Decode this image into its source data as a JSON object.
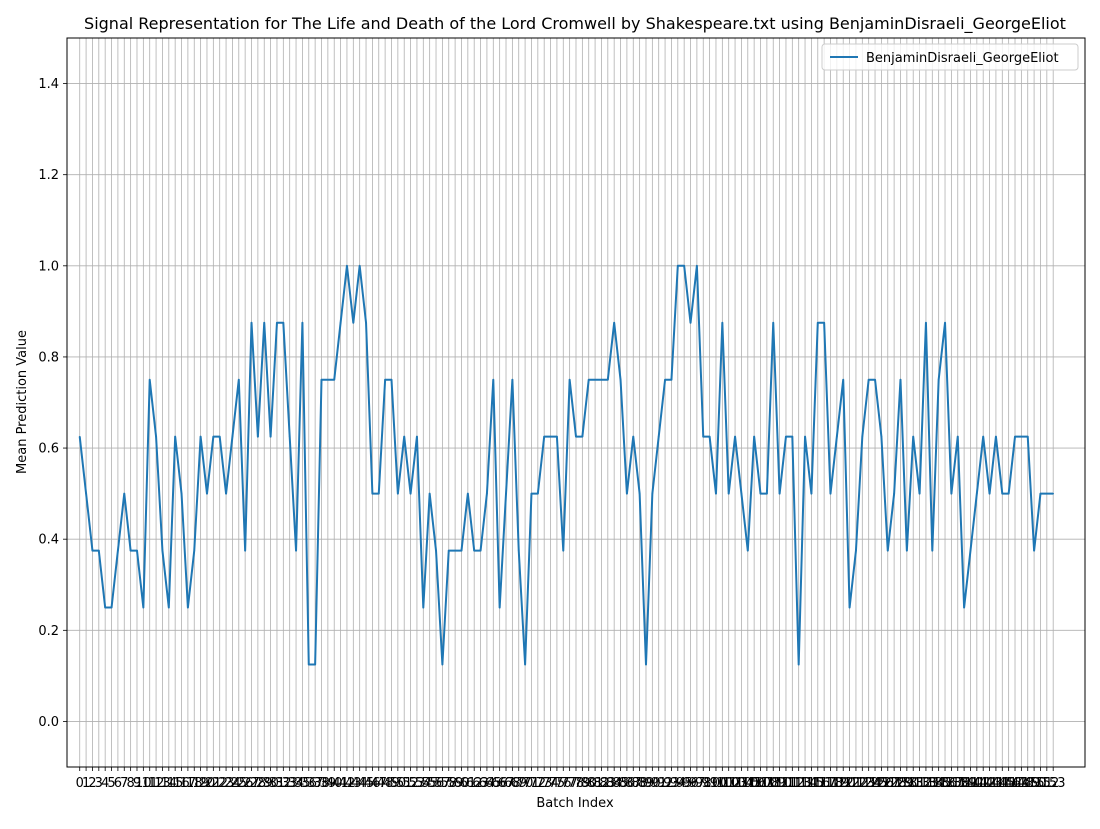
{
  "chart_data": {
    "type": "line",
    "title": "Signal Representation for The Life and Death of the Lord Cromwell by Shakespeare.txt using BenjaminDisraeli_GeorgeEliot",
    "xlabel": "Batch Index",
    "ylabel": "Mean Prediction Value",
    "xlim": [
      -2,
      158
    ],
    "ylim": [
      -0.1,
      1.5
    ],
    "yticks": [
      0.0,
      0.2,
      0.4,
      0.6,
      0.8,
      1.0,
      1.2,
      1.4
    ],
    "ytick_labels": [
      "0.0",
      "0.2",
      "0.4",
      "0.6",
      "0.8",
      "1.0",
      "1.2",
      "1.4"
    ],
    "x_tick_count": 154,
    "grid": true,
    "legend": "top-right",
    "series": [
      {
        "name": "BenjaminDisraeli_GeorgeEliot",
        "color": "#1f77b4",
        "values": [
          0.625,
          0.5,
          0.375,
          0.375,
          0.25,
          0.25,
          0.375,
          0.5,
          0.375,
          0.375,
          0.25,
          0.75,
          0.625,
          0.375,
          0.25,
          0.625,
          0.5,
          0.25,
          0.375,
          0.625,
          0.5,
          0.625,
          0.625,
          0.5,
          0.625,
          0.75,
          0.375,
          0.875,
          0.625,
          0.875,
          0.625,
          0.875,
          0.875,
          0.625,
          0.375,
          0.875,
          0.125,
          0.125,
          0.75,
          0.75,
          0.75,
          0.875,
          1.0,
          0.875,
          1.0,
          0.875,
          0.5,
          0.5,
          0.75,
          0.75,
          0.5,
          0.625,
          0.5,
          0.625,
          0.25,
          0.5,
          0.375,
          0.125,
          0.375,
          0.375,
          0.375,
          0.5,
          0.375,
          0.375,
          0.5,
          0.75,
          0.25,
          0.5,
          0.75,
          0.375,
          0.125,
          0.5,
          0.5,
          0.625,
          0.625,
          0.625,
          0.375,
          0.75,
          0.625,
          0.625,
          0.75,
          0.75,
          0.75,
          0.75,
          0.875,
          0.75,
          0.5,
          0.625,
          0.5,
          0.125,
          0.5,
          0.625,
          0.75,
          0.75,
          1.0,
          1.0,
          0.875,
          1.0,
          0.625,
          0.625,
          0.5,
          0.875,
          0.5,
          0.625,
          0.5,
          0.375,
          0.625,
          0.5,
          0.5,
          0.875,
          0.5,
          0.625,
          0.625,
          0.125,
          0.625,
          0.5,
          0.875,
          0.875,
          0.5,
          0.625,
          0.75,
          0.25,
          0.375,
          0.625,
          0.75,
          0.75,
          0.625,
          0.375,
          0.5,
          0.75,
          0.375,
          0.625,
          0.5,
          0.875,
          0.375,
          0.75,
          0.875,
          0.5,
          0.625,
          0.25,
          0.375,
          0.5,
          0.625,
          0.5,
          0.625,
          0.5,
          0.5,
          0.625,
          0.625,
          0.625,
          0.375,
          0.5,
          0.5,
          0.5
        ]
      }
    ]
  }
}
